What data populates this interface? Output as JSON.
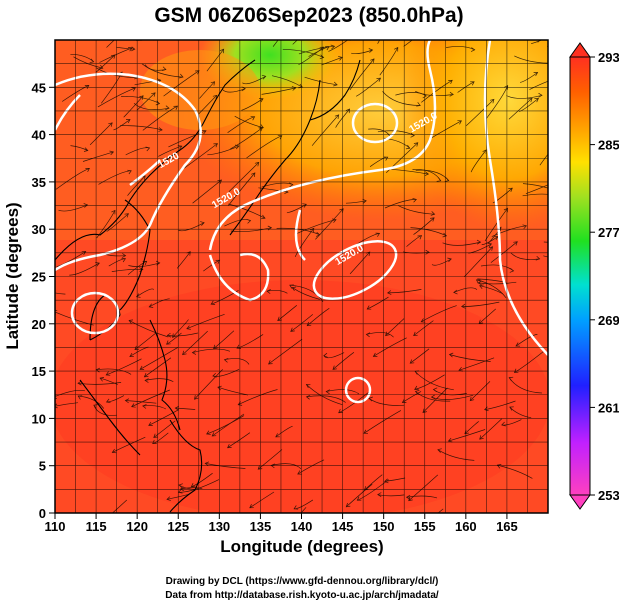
{
  "title": "GSM 06Z06Sep2023 (850.0hPa)",
  "xlabel": "Longitude (degrees)",
  "ylabel": "Latitude  (degrees)",
  "credits": [
    "Drawing by DCL (https://www.gfd-dennou.org/library/dcl/)",
    "Data from http://database.rish.kyoto-u.ac.jp/arch/jmadata/"
  ],
  "chart_data": {
    "type": "heatmap",
    "x_ticks": [
      110,
      115,
      120,
      125,
      130,
      135,
      140,
      145,
      150,
      155,
      160,
      165
    ],
    "y_ticks": [
      0,
      5,
      10,
      15,
      20,
      25,
      30,
      35,
      40,
      45
    ],
    "xlim": [
      110,
      170
    ],
    "ylim": [
      0,
      50
    ],
    "colorbar": {
      "ticks": [
        293,
        285,
        277,
        269,
        261,
        253
      ],
      "range": [
        253,
        293
      ],
      "colors": [
        "#ff40c0",
        "#c020ff",
        "#2020ff",
        "#00a0ff",
        "#00e0d0",
        "#20e020",
        "#a0e020",
        "#ffe000",
        "#ffa000",
        "#ff6000",
        "#ff3020"
      ]
    },
    "contour_labels": [
      {
        "text": "1520.0",
        "lon": 146,
        "lat": 27
      },
      {
        "text": "1520",
        "lon": 124,
        "lat": 37
      },
      {
        "text": "1520.0",
        "lon": 131,
        "lat": 33
      },
      {
        "text": "1520.0",
        "lon": 155,
        "lat": 41
      }
    ],
    "grid": true
  }
}
